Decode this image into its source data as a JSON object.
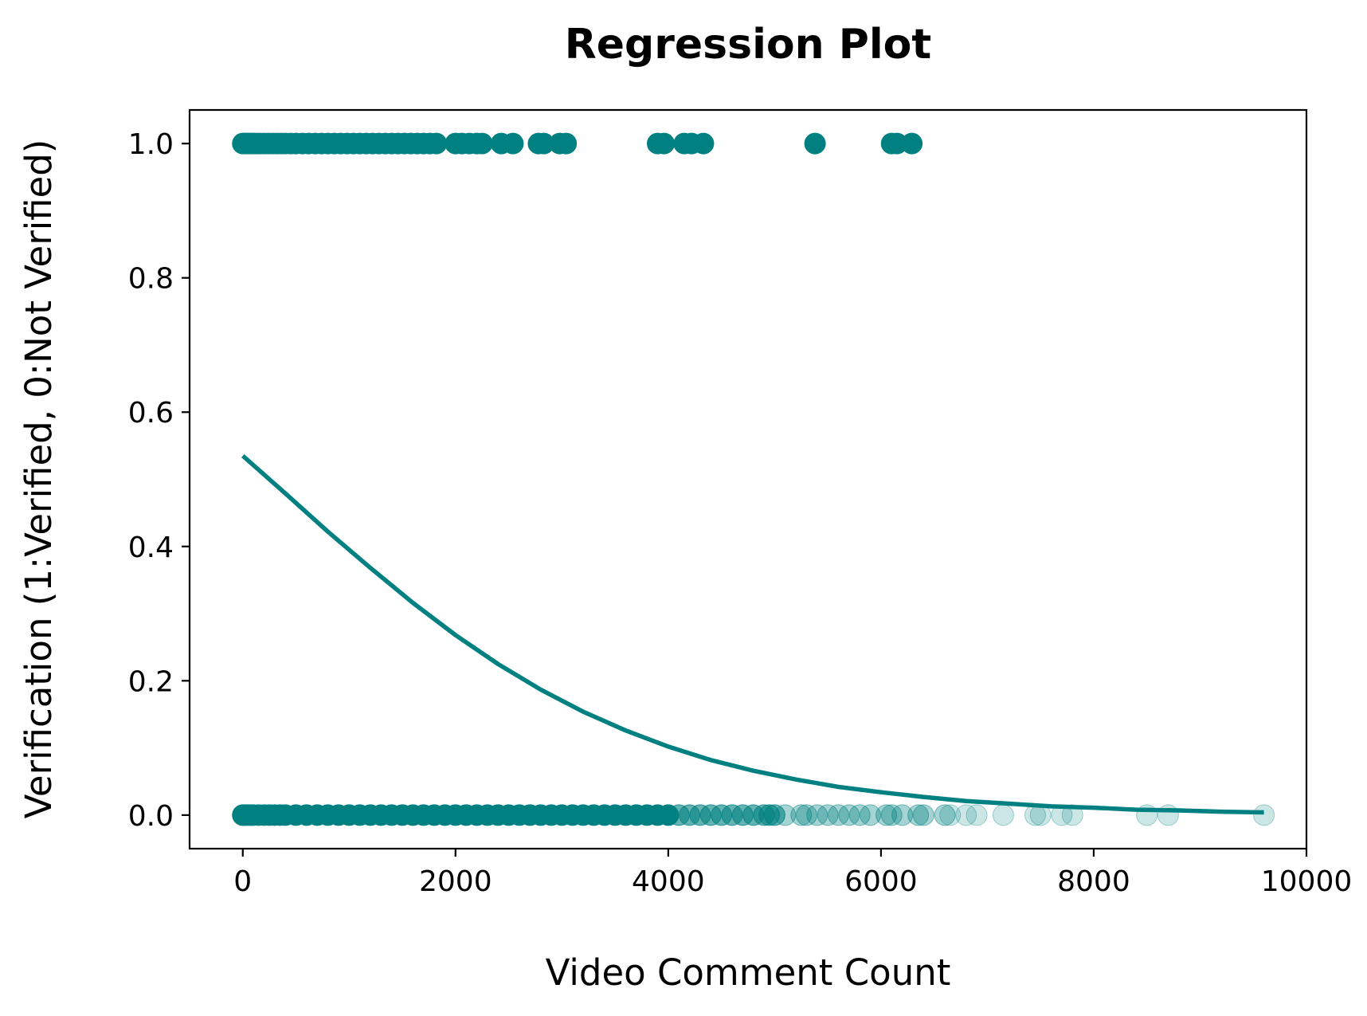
{
  "chart_data": {
    "type": "scatter",
    "title": "Regression Plot",
    "xlabel": "Video Comment Count",
    "ylabel": "Verification (1:Verified, 0:Not Verified)",
    "xlim": [
      -500,
      10000
    ],
    "ylim": [
      -0.05,
      1.05
    ],
    "x_ticks": [
      0,
      2000,
      4000,
      6000,
      8000,
      10000
    ],
    "x_tick_labels": [
      "0",
      "2000",
      "4000",
      "6000",
      "8000",
      "10000"
    ],
    "y_ticks": [
      0.0,
      0.2,
      0.4,
      0.6,
      0.8,
      1.0
    ],
    "y_tick_labels": [
      "0.0",
      "0.2",
      "0.4",
      "0.6",
      "0.8",
      "1.0"
    ],
    "grid": false,
    "colors": {
      "marker": "#008080",
      "line": "#008080",
      "axes": "#000000",
      "background": "#ffffff"
    },
    "series": [
      {
        "kind": "scatter",
        "y": 1,
        "x": [
          0,
          20,
          40,
          60,
          80,
          100,
          130,
          160,
          200,
          240,
          280,
          320,
          360,
          400,
          450,
          500,
          560,
          620,
          680,
          740,
          800,
          860,
          920,
          980,
          1040,
          1100,
          1160,
          1220,
          1280,
          1340,
          1400,
          1460,
          1520,
          1580,
          1640,
          1700,
          1760,
          1820,
          2000,
          2060,
          2130,
          2200,
          2250,
          2430,
          2540,
          2780,
          2830,
          2980,
          3040,
          3900,
          3960,
          4150,
          4220,
          4330,
          5380,
          6100,
          6150,
          6290
        ]
      },
      {
        "kind": "scatter",
        "y": 0,
        "x": [
          0,
          10,
          25,
          50,
          75,
          100,
          150,
          200,
          250,
          300,
          350,
          400,
          500,
          600,
          700,
          800,
          900,
          1000,
          1100,
          1200,
          1300,
          1400,
          1500,
          1600,
          1700,
          1800,
          1900,
          2000,
          2100,
          2200,
          2300,
          2400,
          2500,
          2600,
          2700,
          2800,
          2900,
          3000,
          3100,
          3200,
          3300,
          3400,
          3500,
          3600,
          3700,
          3800,
          3900,
          4000,
          4100,
          4200,
          4300,
          4400,
          4500,
          4600,
          4700,
          4800,
          4900,
          4950,
          5000,
          5100,
          5250,
          5300,
          5400,
          5500,
          5600,
          5700,
          5800,
          5900,
          6050,
          6100,
          6200,
          6350,
          6400,
          6600,
          6650,
          6800,
          6900,
          7150,
          7450,
          7500,
          7700,
          7800,
          8500,
          8700,
          9600
        ]
      },
      {
        "kind": "logistic-fit",
        "x": [
          0,
          400,
          800,
          1200,
          1600,
          2000,
          2400,
          2800,
          3200,
          3600,
          4000,
          4400,
          4800,
          5200,
          5600,
          6000,
          6400,
          6800,
          7200,
          7600,
          8000,
          8400,
          8800,
          9200,
          9600
        ],
        "y": [
          0.535,
          0.479,
          0.422,
          0.368,
          0.316,
          0.268,
          0.225,
          0.187,
          0.154,
          0.126,
          0.102,
          0.082,
          0.066,
          0.053,
          0.042,
          0.034,
          0.027,
          0.021,
          0.017,
          0.013,
          0.011,
          0.008,
          0.007,
          0.005,
          0.004
        ]
      }
    ]
  }
}
